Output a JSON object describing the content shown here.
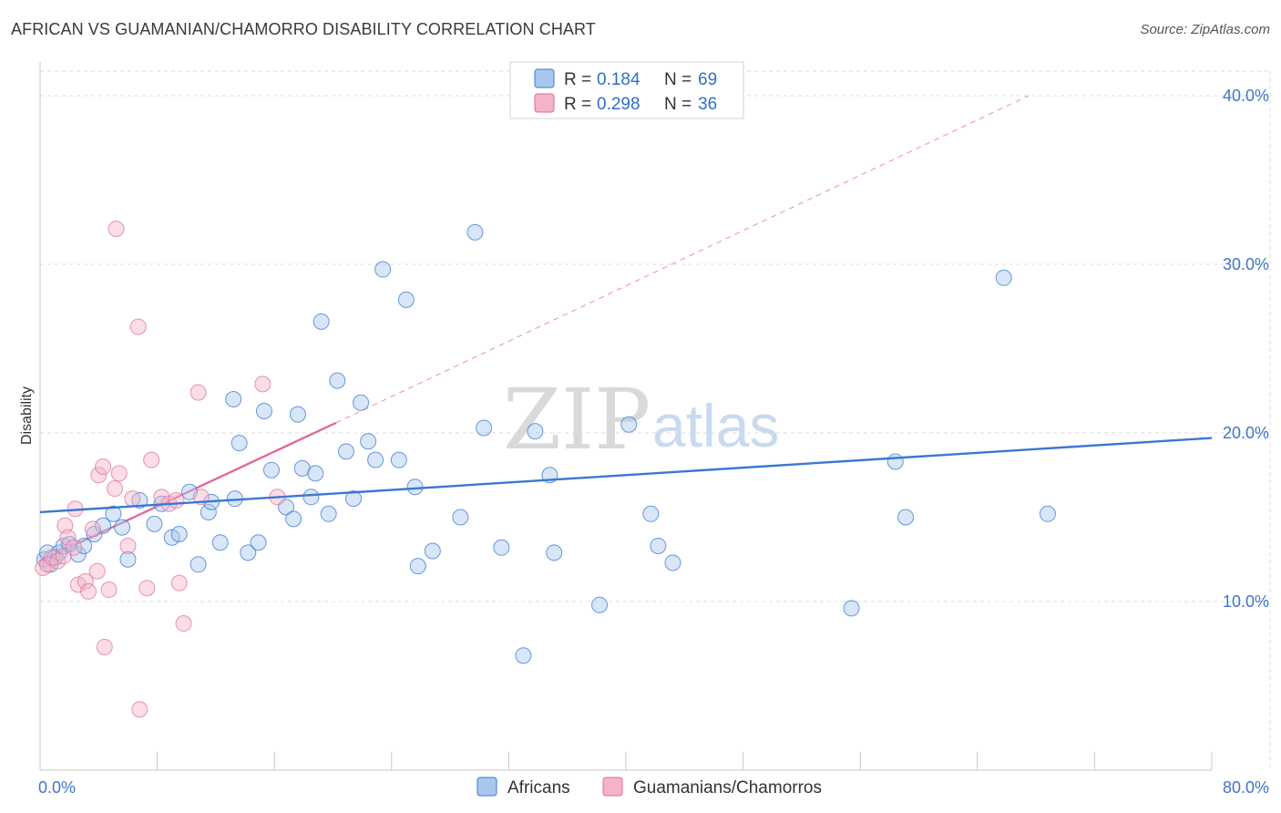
{
  "title": "AFRICAN VS GUAMANIAN/CHAMORRO DISABILITY CORRELATION CHART",
  "source": "Source: ZipAtlas.com",
  "watermark": {
    "part1": "ZIP",
    "part2": "atlas"
  },
  "colors": {
    "blue": "#3a78d1",
    "blue_fill": "#a9c7ee",
    "pink": "#e06a9a",
    "pink_fill": "#f5b3c8",
    "grid": "#dcdcdc",
    "tick_label": "#3f74c8"
  },
  "legend": {
    "items": [
      {
        "r_label": "R =",
        "r_value": "0.184",
        "n_label": "N =",
        "n_value": "69"
      },
      {
        "r_label": "R =",
        "r_value": "0.298",
        "n_label": "N =",
        "n_value": "36"
      }
    ]
  },
  "bottom_legend": [
    "Africans",
    "Guamanians/Chamorros"
  ],
  "chart_data": {
    "type": "scatter",
    "title": "AFRICAN VS GUAMANIAN/CHAMORRO DISABILITY CORRELATION CHART",
    "xlabel": "",
    "ylabel": "Disability",
    "xlim": [
      0,
      80
    ],
    "ylim": [
      0,
      42
    ],
    "x_tick_labels": [
      "0.0%",
      "80.0%"
    ],
    "y_ticks": [
      10,
      20,
      30,
      40
    ],
    "y_tick_labels": [
      "10.0%",
      "20.0%",
      "30.0%",
      "40.0%"
    ],
    "grid": true,
    "legend_position": "top-center",
    "series": [
      {
        "name": "Africans",
        "color": "#3a78d1",
        "r": 0.184,
        "n": 69,
        "trend": {
          "x": [
            0,
            80
          ],
          "y": [
            15.3,
            19.7
          ]
        },
        "points": [
          [
            0.3,
            12.5
          ],
          [
            0.5,
            12.9
          ],
          [
            0.7,
            12.2
          ],
          [
            1.0,
            12.6
          ],
          [
            1.3,
            12.9
          ],
          [
            1.6,
            13.3
          ],
          [
            2.0,
            13.4
          ],
          [
            2.6,
            12.8
          ],
          [
            3.0,
            13.3
          ],
          [
            3.7,
            14.0
          ],
          [
            4.3,
            14.5
          ],
          [
            5.0,
            15.2
          ],
          [
            5.6,
            14.4
          ],
          [
            6.8,
            16.0
          ],
          [
            6.0,
            12.5
          ],
          [
            7.8,
            14.6
          ],
          [
            8.3,
            15.8
          ],
          [
            9.0,
            13.8
          ],
          [
            9.5,
            14.0
          ],
          [
            10.2,
            16.5
          ],
          [
            10.8,
            12.2
          ],
          [
            11.5,
            15.3
          ],
          [
            11.7,
            15.9
          ],
          [
            12.3,
            13.5
          ],
          [
            13.2,
            22.0
          ],
          [
            13.3,
            16.1
          ],
          [
            13.6,
            19.4
          ],
          [
            14.2,
            12.9
          ],
          [
            14.9,
            13.5
          ],
          [
            15.3,
            21.3
          ],
          [
            15.8,
            17.8
          ],
          [
            16.8,
            15.6
          ],
          [
            17.3,
            14.9
          ],
          [
            17.6,
            21.1
          ],
          [
            17.9,
            17.9
          ],
          [
            18.5,
            16.2
          ],
          [
            18.8,
            17.6
          ],
          [
            19.2,
            26.6
          ],
          [
            19.7,
            15.2
          ],
          [
            20.3,
            23.1
          ],
          [
            20.9,
            18.9
          ],
          [
            21.4,
            16.1
          ],
          [
            21.9,
            21.8
          ],
          [
            22.4,
            19.5
          ],
          [
            22.9,
            18.4
          ],
          [
            23.4,
            29.7
          ],
          [
            24.5,
            18.4
          ],
          [
            25.0,
            27.9
          ],
          [
            25.6,
            16.8
          ],
          [
            25.8,
            12.1
          ],
          [
            26.8,
            13.0
          ],
          [
            28.7,
            15.0
          ],
          [
            29.7,
            31.9
          ],
          [
            30.3,
            20.3
          ],
          [
            31.5,
            13.2
          ],
          [
            33.0,
            6.8
          ],
          [
            33.8,
            20.1
          ],
          [
            34.8,
            17.5
          ],
          [
            35.1,
            12.9
          ],
          [
            38.2,
            9.8
          ],
          [
            40.2,
            20.5
          ],
          [
            41.7,
            15.2
          ],
          [
            42.2,
            13.3
          ],
          [
            43.2,
            12.3
          ],
          [
            55.4,
            9.6
          ],
          [
            58.4,
            18.3
          ],
          [
            59.1,
            15.0
          ],
          [
            65.8,
            29.2
          ],
          [
            68.8,
            15.2
          ]
        ]
      },
      {
        "name": "Guamanians/Chamorros",
        "color": "#e06a9a",
        "r": 0.298,
        "n": 36,
        "trend": {
          "x": [
            0,
            20.2
          ],
          "y": [
            12.4,
            20.6
          ]
        },
        "trend_extended": {
          "x": [
            20.2,
            67.5
          ],
          "y": [
            20.6,
            40.0
          ]
        },
        "points": [
          [
            0.2,
            12.0
          ],
          [
            0.5,
            12.2
          ],
          [
            0.8,
            12.6
          ],
          [
            1.2,
            12.4
          ],
          [
            1.6,
            12.7
          ],
          [
            1.7,
            14.5
          ],
          [
            1.9,
            13.8
          ],
          [
            2.3,
            13.2
          ],
          [
            2.4,
            15.5
          ],
          [
            2.6,
            11.0
          ],
          [
            3.1,
            11.2
          ],
          [
            3.3,
            10.6
          ],
          [
            3.6,
            14.3
          ],
          [
            3.9,
            11.8
          ],
          [
            4.0,
            17.5
          ],
          [
            4.3,
            18.0
          ],
          [
            4.7,
            10.7
          ],
          [
            4.4,
            7.3
          ],
          [
            5.1,
            16.7
          ],
          [
            5.4,
            17.6
          ],
          [
            5.2,
            32.1
          ],
          [
            6.0,
            13.3
          ],
          [
            6.3,
            16.1
          ],
          [
            6.7,
            26.3
          ],
          [
            6.8,
            3.6
          ],
          [
            7.3,
            10.8
          ],
          [
            7.6,
            18.4
          ],
          [
            8.3,
            16.2
          ],
          [
            8.8,
            15.8
          ],
          [
            9.3,
            16.0
          ],
          [
            9.5,
            11.1
          ],
          [
            9.8,
            8.7
          ],
          [
            10.8,
            22.4
          ],
          [
            11.0,
            16.2
          ],
          [
            15.2,
            22.9
          ],
          [
            16.2,
            16.2
          ]
        ]
      }
    ]
  }
}
